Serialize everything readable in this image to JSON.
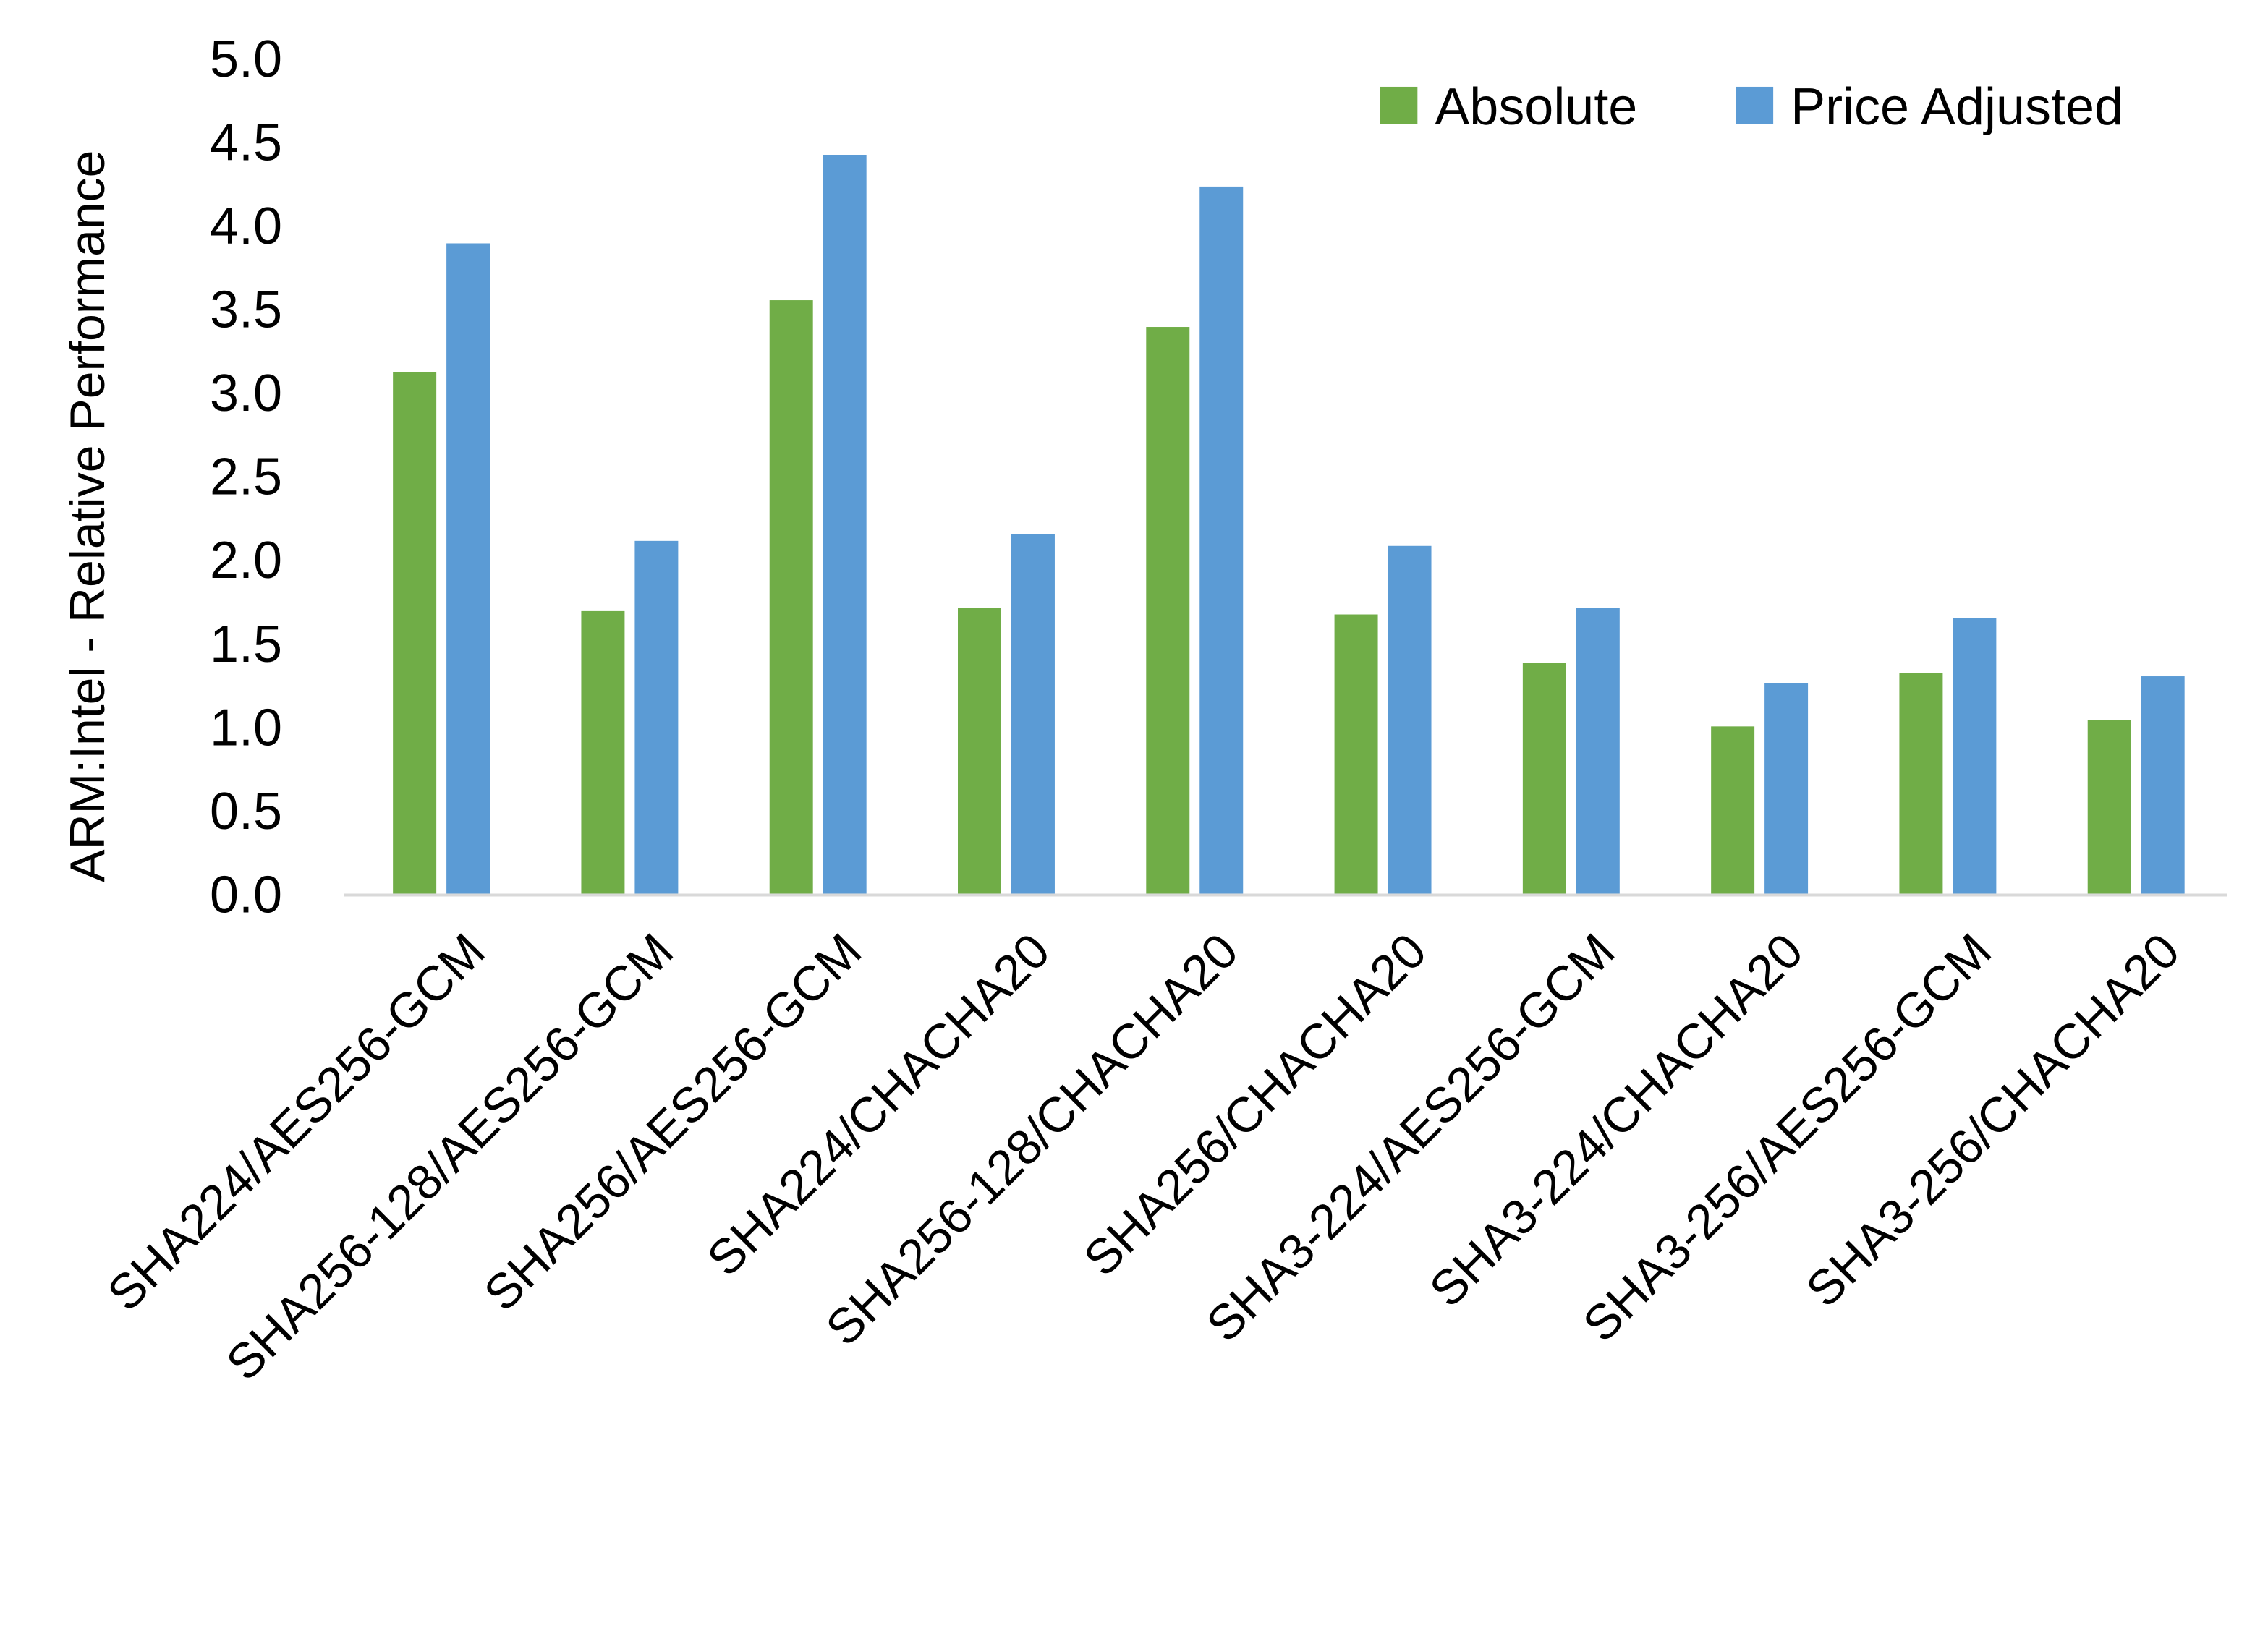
{
  "chart_data": {
    "type": "bar",
    "title": "",
    "xlabel": "",
    "ylabel": "ARM:Intel - Relative Performance",
    "ylim": [
      0,
      5
    ],
    "yticks": [
      "0.0",
      "0.5",
      "1.0",
      "1.5",
      "2.0",
      "2.5",
      "3.0",
      "3.5",
      "4.0",
      "4.5",
      "5.0"
    ],
    "grid": false,
    "legend_position": "top-right",
    "categories": [
      "SHA224/AES256-GCM",
      "SHA256-128/AES256-GCM",
      "SHA256/AES256-GCM",
      "SHA224/CHACHA20",
      "SHA256-128/CHACHA20",
      "SHA256/CHACHA20",
      "SHA3-224/AES256-GCM",
      "SHA3-224/CHACHA20",
      "SHA3-256/AES256-GCM",
      "SHA3-256/CHACHA20"
    ],
    "series": [
      {
        "name": "Absolute",
        "color": "#70AD47",
        "values": [
          3.12,
          1.69,
          3.55,
          1.71,
          3.39,
          1.67,
          1.38,
          1.0,
          1.32,
          1.04
        ]
      },
      {
        "name": "Price Adjusted",
        "color": "#5B9BD5",
        "values": [
          3.89,
          2.11,
          4.42,
          2.15,
          4.23,
          2.08,
          1.71,
          1.26,
          1.65,
          1.3
        ]
      }
    ]
  }
}
